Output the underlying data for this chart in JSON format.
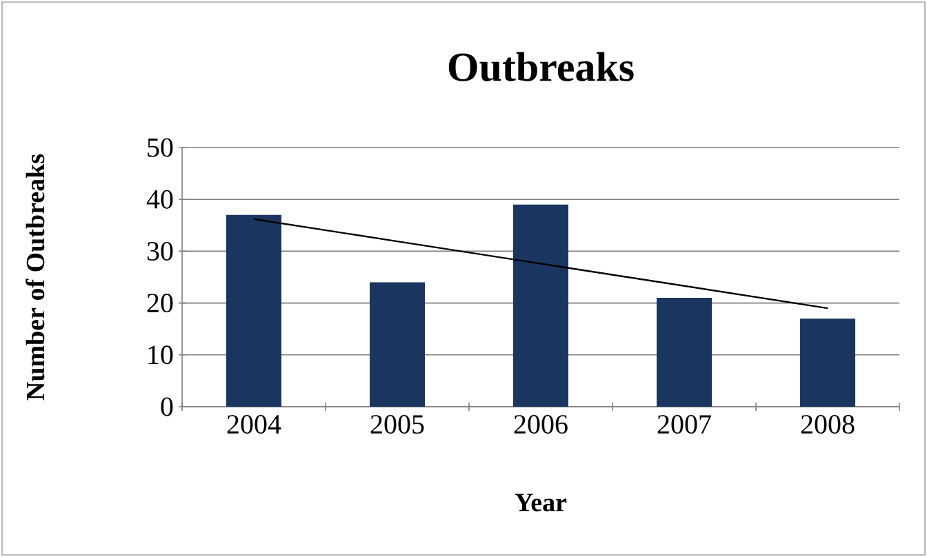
{
  "chart_data": {
    "type": "bar",
    "title": "Outbreaks",
    "xlabel": "Year",
    "ylabel": "Number of Outbreaks",
    "categories": [
      "2004",
      "2005",
      "2006",
      "2007",
      "2008"
    ],
    "series": [
      {
        "color": "#1a3660",
        "values": [
          37,
          24,
          39,
          21,
          17
        ]
      },
      {
        "type": "line",
        "color": "#000000",
        "values": [
          36.2,
          31.9,
          27.6,
          23.3,
          19.0
        ]
      }
    ],
    "ylim": [
      0,
      50
    ],
    "yticks": [
      0,
      10,
      20,
      30,
      40,
      50
    ],
    "grid": "y"
  }
}
